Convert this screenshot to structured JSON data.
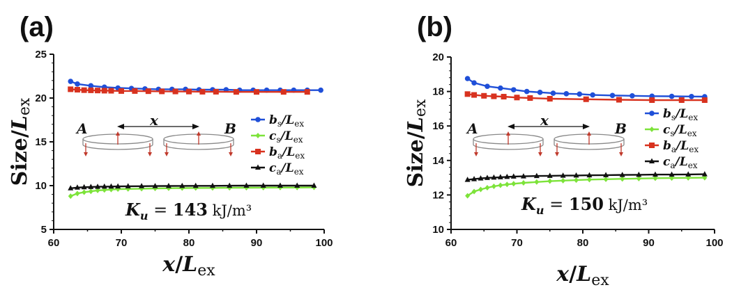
{
  "chart_data": [
    {
      "type": "line",
      "panel": "(a)",
      "xlabel": "x/L_ex",
      "ylabel": "Size/L_ex",
      "xlim": [
        60,
        100
      ],
      "ylim": [
        5,
        25
      ],
      "xticks": [
        60,
        70,
        80,
        90,
        100
      ],
      "yticks": [
        5,
        10,
        15,
        20,
        25
      ],
      "annotation": {
        "prefix": "K",
        "sub": "u",
        "equals": " = ",
        "value": "143",
        "unit": "kJ/m³"
      },
      "inset": {
        "left_label": "A",
        "right_label": "B",
        "distance_label": "x"
      },
      "legend_position": "right-middle",
      "series": [
        {
          "name": "b_s/L_ex",
          "label_main": "b",
          "label_sub": "s",
          "label_tail": "/L",
          "label_tail_sub": "ex",
          "color": "#1f4fd8",
          "marker": "circle",
          "x": [
            62.5,
            63.5,
            65.5,
            67.5,
            69.5,
            71.5,
            73.5,
            75.5,
            77.5,
            79.5,
            81.5,
            83.5,
            85.5,
            87.5,
            89.5,
            91.5,
            93.5,
            95.5,
            97.5,
            99.5
          ],
          "y": [
            21.9,
            21.6,
            21.4,
            21.25,
            21.15,
            21.1,
            21.05,
            21.0,
            21.0,
            21.0,
            20.95,
            20.95,
            20.95,
            20.9,
            20.9,
            20.9,
            20.9,
            20.9,
            20.9,
            20.9
          ]
        },
        {
          "name": "c_s/L_ex",
          "label_main": "c",
          "label_sub": "s",
          "label_tail": "/L",
          "label_tail_sub": "ex",
          "color": "#7de33a",
          "marker": "diamond",
          "x": [
            62.5,
            63.5,
            64.5,
            65.5,
            66.5,
            67.5,
            68.5,
            69.5,
            71,
            73,
            75,
            77,
            79,
            81,
            83.5,
            86,
            88.5,
            91,
            93.5,
            96,
            98.5
          ],
          "y": [
            8.8,
            9.1,
            9.25,
            9.35,
            9.45,
            9.5,
            9.55,
            9.6,
            9.62,
            9.65,
            9.68,
            9.7,
            9.72,
            9.73,
            9.74,
            9.75,
            9.76,
            9.77,
            9.78,
            9.78,
            9.8
          ]
        },
        {
          "name": "b_a/L_ex",
          "label_main": "b",
          "label_sub": "a",
          "label_tail": "/L",
          "label_tail_sub": "ex",
          "color": "#d8321f",
          "marker": "square",
          "x": [
            62.5,
            63.5,
            64.5,
            65.5,
            66.5,
            67.5,
            68.5,
            70,
            72,
            74,
            76,
            78,
            80,
            82,
            84,
            87,
            90,
            94,
            97.5
          ],
          "y": [
            21.0,
            20.95,
            20.9,
            20.88,
            20.86,
            20.84,
            20.83,
            20.8,
            20.8,
            20.78,
            20.76,
            20.75,
            20.74,
            20.72,
            20.72,
            20.7,
            20.7,
            20.7,
            20.7
          ]
        },
        {
          "name": "c_a/L_ex",
          "label_main": "c",
          "label_sub": "a",
          "label_tail": "/L",
          "label_tail_sub": "ex",
          "color": "#111111",
          "marker": "triangle",
          "x": [
            62.5,
            63.5,
            64.5,
            65.5,
            66.5,
            67.5,
            68.5,
            69.5,
            71,
            73,
            75,
            77,
            79,
            81,
            83.5,
            86,
            88.5,
            91,
            93.5,
            96,
            98.5
          ],
          "y": [
            9.7,
            9.78,
            9.82,
            9.85,
            9.87,
            9.89,
            9.9,
            9.91,
            9.93,
            9.94,
            9.95,
            9.96,
            9.97,
            9.98,
            9.98,
            9.99,
            10.0,
            10.0,
            10.0,
            10.0,
            10.0
          ]
        }
      ]
    },
    {
      "type": "line",
      "panel": "(b)",
      "xlabel": "x/L_ex",
      "ylabel": "Size/L_ex",
      "xlim": [
        60,
        100
      ],
      "ylim": [
        10,
        20
      ],
      "xticks": [
        60,
        70,
        80,
        90,
        100
      ],
      "yticks": [
        10,
        12,
        14,
        16,
        18,
        20
      ],
      "annotation": {
        "prefix": "K",
        "sub": "u",
        "equals": " = ",
        "value": "150",
        "unit": "kJ/m³"
      },
      "inset": {
        "left_label": "A",
        "right_label": "B",
        "distance_label": "x"
      },
      "legend_position": "right-middle",
      "series": [
        {
          "name": "b_s/L_ex",
          "label_main": "b",
          "label_sub": "s",
          "label_tail": "/L",
          "label_tail_sub": "ex",
          "color": "#1f4fd8",
          "marker": "circle",
          "x": [
            62.5,
            63.5,
            65.5,
            67.5,
            69.5,
            71.5,
            73.5,
            75.5,
            77.5,
            79.5,
            81.5,
            84.5,
            87.5,
            90.5,
            93.5,
            96.5,
            98.5
          ],
          "y": [
            18.75,
            18.5,
            18.3,
            18.2,
            18.1,
            18.0,
            17.95,
            17.9,
            17.87,
            17.85,
            17.8,
            17.77,
            17.75,
            17.73,
            17.72,
            17.71,
            17.7
          ]
        },
        {
          "name": "c_s/L_ex",
          "label_main": "c",
          "label_sub": "s",
          "label_tail": "/L",
          "label_tail_sub": "ex",
          "color": "#7de33a",
          "marker": "diamond",
          "x": [
            62.5,
            63.5,
            64.5,
            65.5,
            66.5,
            67.5,
            68.5,
            69.5,
            71,
            73,
            75,
            77,
            79,
            81,
            83.5,
            86,
            88.5,
            91,
            93.5,
            96,
            98.5
          ],
          "y": [
            11.95,
            12.2,
            12.32,
            12.42,
            12.5,
            12.56,
            12.61,
            12.65,
            12.7,
            12.75,
            12.8,
            12.83,
            12.86,
            12.89,
            12.91,
            12.93,
            12.95,
            12.97,
            12.98,
            12.99,
            13.0
          ]
        },
        {
          "name": "b_a/L_ex",
          "label_main": "b",
          "label_sub": "a",
          "label_tail": "/L",
          "label_tail_sub": "ex",
          "color": "#d8321f",
          "marker": "square",
          "x": [
            62.5,
            63.5,
            65,
            66.5,
            68,
            70,
            72,
            75,
            80.5,
            85.5,
            90.5,
            95,
            98.5
          ],
          "y": [
            17.85,
            17.8,
            17.75,
            17.72,
            17.7,
            17.65,
            17.62,
            17.58,
            17.55,
            17.52,
            17.5,
            17.5,
            17.5
          ]
        },
        {
          "name": "c_a/L_ex",
          "label_main": "c",
          "label_sub": "a",
          "label_tail": "/L",
          "label_tail_sub": "ex",
          "color": "#111111",
          "marker": "triangle",
          "x": [
            62.5,
            63.5,
            64.5,
            65.5,
            66.5,
            67.5,
            68.5,
            69.5,
            71,
            73,
            75,
            77,
            79,
            81,
            83.5,
            86,
            88.5,
            91,
            93.5,
            96,
            98.5
          ],
          "y": [
            12.88,
            12.92,
            12.96,
            12.99,
            13.01,
            13.03,
            13.05,
            13.07,
            13.08,
            13.1,
            13.11,
            13.12,
            13.13,
            13.14,
            13.15,
            13.16,
            13.17,
            13.18,
            13.18,
            13.19,
            13.2
          ]
        }
      ]
    }
  ]
}
